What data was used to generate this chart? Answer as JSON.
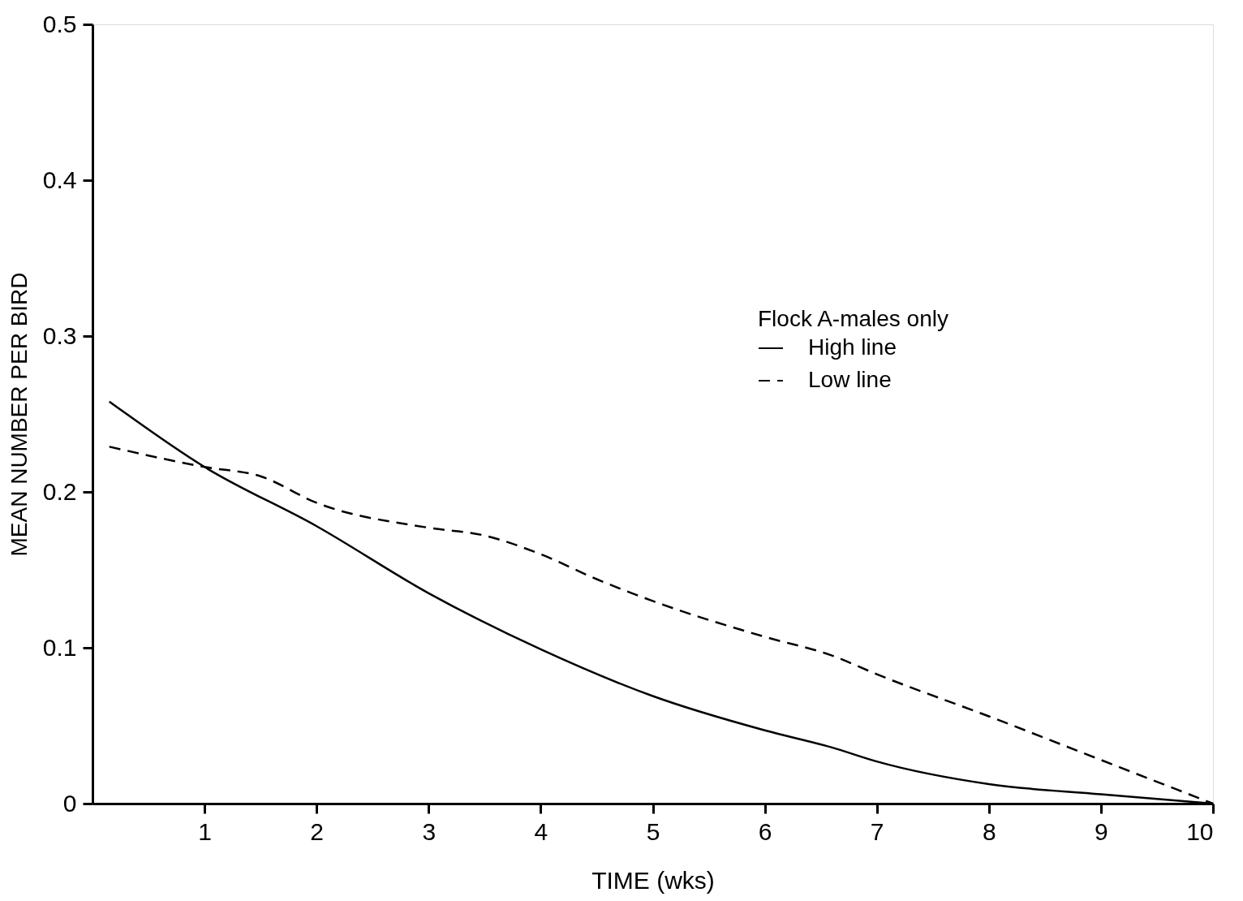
{
  "chart_data": {
    "type": "line",
    "xlabel": "TIME (wks)",
    "ylabel": "MEAN NUMBER PER BIRD",
    "legend_title": "Flock A-males only",
    "legend": "top right",
    "grid": false,
    "xlim": [
      0,
      10
    ],
    "ylim": [
      0,
      0.5
    ],
    "xticks": [
      1,
      2,
      3,
      4,
      5,
      6,
      7,
      8,
      9,
      10
    ],
    "yticks": [
      0,
      0.1,
      0.2,
      0.3,
      0.4,
      0.5
    ],
    "series": [
      {
        "name": "High line",
        "color": "#000000",
        "line_style": "solid",
        "x": [
          0.15,
          1,
          2,
          3,
          4,
          5,
          6,
          6.6,
          7,
          8,
          9,
          10
        ],
        "values": [
          0.258,
          0.216,
          0.178,
          0.135,
          0.099,
          0.069,
          0.047,
          0.036,
          0.027,
          0.0125,
          0.006,
          0
        ]
      },
      {
        "name": "Low line",
        "color": "#000000",
        "line_style": "dashed",
        "x": [
          0.15,
          1,
          1.5,
          2,
          3,
          3.5,
          4,
          4.5,
          5,
          6,
          6.6,
          7,
          8,
          9,
          10
        ],
        "values": [
          0.229,
          0.216,
          0.21,
          0.193,
          0.177,
          0.172,
          0.16,
          0.144,
          0.13,
          0.107,
          0.095,
          0.083,
          0.056,
          0.028,
          0
        ]
      }
    ]
  }
}
